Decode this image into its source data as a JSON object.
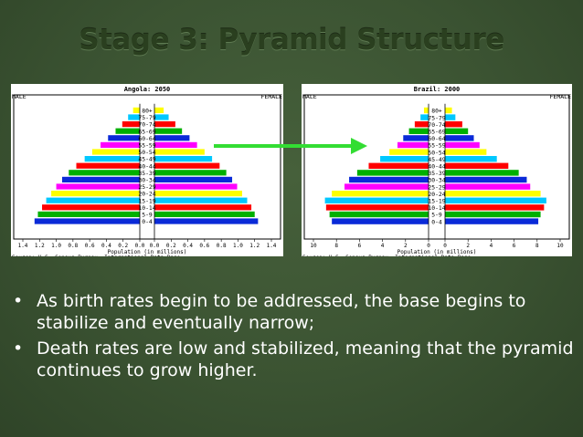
{
  "slide": {
    "title": "Stage 3: Pyramid Structure",
    "bullet_glyph": "•",
    "bullets": [
      "As birth rates begin to be addressed, the base begins to stabilize and eventually narrow;",
      "Death rates are low and stabilized, meaning that the pyramid continues to grow higher."
    ],
    "arrow_color": "#33dd33"
  },
  "age_colors": [
    "#0a2ad8",
    "#00b000",
    "#ff0000",
    "#00c8ff",
    "#ffff00",
    "#ff00ff",
    "#0a2ad8",
    "#00b000",
    "#ff0000",
    "#00c8ff",
    "#ffff00",
    "#ff00ff",
    "#0a2ad8",
    "#00b000",
    "#ff0000",
    "#00c8ff",
    "#ffff00"
  ],
  "chart_data": [
    {
      "type": "bar",
      "subtype": "population-pyramid",
      "title": "Angola: 2050",
      "left_label": "MALE",
      "right_label": "FEMALE",
      "xlabel": "Population (in millions)",
      "source": "Source: U.S. Census Bureau, International Data Base.",
      "categories": [
        "0-4",
        "5-9",
        "10-14",
        "15-19",
        "20-24",
        "25-29",
        "30-34",
        "35-39",
        "40-44",
        "45-49",
        "50-54",
        "55-59",
        "60-64",
        "65-69",
        "70-74",
        "75-79",
        "80+"
      ],
      "xlim": [
        0,
        1.4
      ],
      "tick_labels_left": [
        "1.4",
        "1.2",
        "1.0",
        "0.8",
        "0.6",
        "0.4",
        "0.2",
        "0.0"
      ],
      "tick_labels_right": [
        "0.0",
        "0.2",
        "0.4",
        "0.6",
        "0.8",
        "1.0",
        "1.2",
        "1.4"
      ],
      "series": [
        {
          "name": "MALE",
          "values": [
            1.26,
            1.22,
            1.17,
            1.12,
            1.06,
            1.0,
            0.93,
            0.85,
            0.76,
            0.66,
            0.57,
            0.47,
            0.38,
            0.29,
            0.21,
            0.14,
            0.08
          ]
        },
        {
          "name": "FEMALE",
          "values": [
            1.24,
            1.2,
            1.16,
            1.11,
            1.05,
            0.99,
            0.93,
            0.86,
            0.78,
            0.69,
            0.6,
            0.51,
            0.42,
            0.33,
            0.25,
            0.17,
            0.11
          ]
        }
      ]
    },
    {
      "type": "bar",
      "subtype": "population-pyramid",
      "title": "Brazil: 2000",
      "left_label": "MALE",
      "right_label": "FEMALE",
      "xlabel": "Population (in millions)",
      "source": "Source: U.S. Census Bureau, International Data Base.",
      "categories": [
        "0-4",
        "5-9",
        "10-14",
        "15-19",
        "20-24",
        "25-29",
        "30-34",
        "35-39",
        "40-44",
        "45-49",
        "50-54",
        "55-59",
        "60-64",
        "65-69",
        "70-74",
        "75-79",
        "80+"
      ],
      "xlim": [
        0,
        10
      ],
      "tick_labels_left": [
        "10",
        "8",
        "6",
        "4",
        "2",
        "0"
      ],
      "tick_labels_right": [
        "0",
        "2",
        "4",
        "6",
        "8",
        "10"
      ],
      "series": [
        {
          "name": "MALE",
          "values": [
            8.4,
            8.6,
            8.9,
            9.0,
            8.4,
            7.3,
            6.9,
            6.2,
            5.2,
            4.2,
            3.4,
            2.7,
            2.2,
            1.7,
            1.2,
            0.7,
            0.4
          ]
        },
        {
          "name": "FEMALE",
          "values": [
            8.1,
            8.3,
            8.6,
            8.8,
            8.3,
            7.4,
            7.1,
            6.4,
            5.5,
            4.5,
            3.6,
            3.0,
            2.5,
            2.0,
            1.5,
            0.9,
            0.6
          ]
        }
      ]
    }
  ]
}
